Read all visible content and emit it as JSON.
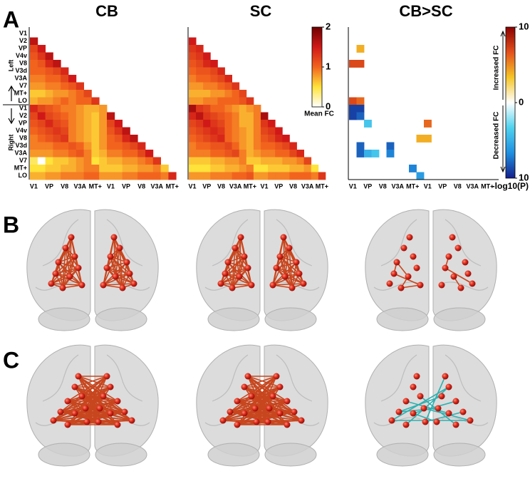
{
  "panel_labels": [
    "A",
    "B",
    "C"
  ],
  "chart_data": [
    {
      "type": "heatmap",
      "title": "CB",
      "row_groups": [
        "Left",
        "Right"
      ],
      "y_categories": [
        "V1",
        "V2",
        "VP",
        "V4v",
        "V8",
        "V3d",
        "V3A",
        "V7",
        "MT+",
        "LO",
        "V1",
        "V2",
        "VP",
        "V4v",
        "V8",
        "V3d",
        "V3A",
        "V7",
        "MT+",
        "LO"
      ],
      "x_categories": [
        "V1",
        null,
        "VP",
        null,
        "V8",
        null,
        "V3A",
        null,
        "MT+",
        null,
        "V1",
        null,
        "VP",
        null,
        "V8",
        null,
        "V3A",
        null,
        "MT+",
        null
      ],
      "values": [
        [],
        [
          1.6
        ],
        [
          1.2,
          1.5
        ],
        [
          1.1,
          1.3,
          1.6
        ],
        [
          1.0,
          1.1,
          1.4,
          1.6
        ],
        [
          1.0,
          1.0,
          1.1,
          1.2,
          1.4
        ],
        [
          0.9,
          0.9,
          1.0,
          1.0,
          1.2,
          1.5
        ],
        [
          0.8,
          0.8,
          0.9,
          0.9,
          1.0,
          1.1,
          1.3
        ],
        [
          0.6,
          0.6,
          0.7,
          0.8,
          0.8,
          0.9,
          1.0,
          1.2
        ],
        [
          0.7,
          0.8,
          0.8,
          0.9,
          1.0,
          0.9,
          1.0,
          1.0,
          1.3
        ],
        [
          1.4,
          1.2,
          1.1,
          1.0,
          0.9,
          0.9,
          0.8,
          0.7,
          0.7,
          0.8
        ],
        [
          1.2,
          1.5,
          1.2,
          1.1,
          1.0,
          0.9,
          0.8,
          0.7,
          0.6,
          0.8,
          1.6
        ],
        [
          1.1,
          1.2,
          1.4,
          1.2,
          1.1,
          0.9,
          0.8,
          0.7,
          0.6,
          0.8,
          1.2,
          1.5
        ],
        [
          1.0,
          1.1,
          1.2,
          1.3,
          1.2,
          0.9,
          0.8,
          0.7,
          0.6,
          0.8,
          1.1,
          1.3,
          1.6
        ],
        [
          0.9,
          1.0,
          1.1,
          1.2,
          1.3,
          0.9,
          0.8,
          0.7,
          0.6,
          0.8,
          1.0,
          1.1,
          1.4,
          1.6
        ],
        [
          0.9,
          0.9,
          0.9,
          1.0,
          1.0,
          1.1,
          1.0,
          0.8,
          0.6,
          0.8,
          1.0,
          1.0,
          1.1,
          1.2,
          1.4
        ],
        [
          0.8,
          0.8,
          0.8,
          0.9,
          0.9,
          1.0,
          1.1,
          0.9,
          0.6,
          0.7,
          0.9,
          0.9,
          1.0,
          1.0,
          1.2,
          1.5
        ],
        [
          0.4,
          0.0,
          0.5,
          0.6,
          0.6,
          0.7,
          0.8,
          0.9,
          0.5,
          0.6,
          0.7,
          0.7,
          0.8,
          0.8,
          0.9,
          1.0,
          1.3
        ],
        [
          0.5,
          0.5,
          0.6,
          0.6,
          0.7,
          0.7,
          0.8,
          0.9,
          0.9,
          0.6,
          0.6,
          0.6,
          0.7,
          0.7,
          0.8,
          0.8,
          0.9,
          0.6
        ],
        [
          0.7,
          0.7,
          0.8,
          0.8,
          0.9,
          0.9,
          0.9,
          1.0,
          1.0,
          0.8,
          0.8,
          0.8,
          0.9,
          0.9,
          1.0,
          1.0,
          1.0,
          0.9,
          1.4
        ]
      ]
    },
    {
      "type": "heatmap",
      "title": "SC",
      "x_categories": [
        "V1",
        null,
        "VP",
        null,
        "V8",
        null,
        "V3A",
        null,
        "MT+",
        null,
        "V1",
        null,
        "VP",
        null,
        "V8",
        null,
        "V3A",
        null,
        "MT+",
        null
      ],
      "values": [
        [],
        [
          1.5
        ],
        [
          1.3,
          1.4
        ],
        [
          1.2,
          1.3,
          1.5
        ],
        [
          1.1,
          1.2,
          1.4,
          1.5
        ],
        [
          1.0,
          1.1,
          1.1,
          1.2,
          1.4
        ],
        [
          0.9,
          1.0,
          1.0,
          1.1,
          1.2,
          1.4
        ],
        [
          0.8,
          0.8,
          0.9,
          0.9,
          1.0,
          1.1,
          1.3
        ],
        [
          0.7,
          0.7,
          0.7,
          0.8,
          0.8,
          0.9,
          1.0,
          1.2
        ],
        [
          0.8,
          0.8,
          0.9,
          0.9,
          1.0,
          1.0,
          1.0,
          1.1,
          1.3
        ],
        [
          1.7,
          1.3,
          1.2,
          1.0,
          1.0,
          0.9,
          0.8,
          0.7,
          0.8,
          0.9
        ],
        [
          1.4,
          1.6,
          1.3,
          1.2,
          1.1,
          1.0,
          0.9,
          0.7,
          0.7,
          0.9,
          1.7
        ],
        [
          1.2,
          1.3,
          1.5,
          1.3,
          1.2,
          1.0,
          0.9,
          0.7,
          0.7,
          0.9,
          1.3,
          1.5
        ],
        [
          1.1,
          1.2,
          1.3,
          1.4,
          1.3,
          1.0,
          0.9,
          0.8,
          0.7,
          0.9,
          1.2,
          1.3,
          1.5
        ],
        [
          1.0,
          1.1,
          1.2,
          1.3,
          1.4,
          1.0,
          0.9,
          0.8,
          0.7,
          0.9,
          1.1,
          1.2,
          1.4,
          1.5
        ],
        [
          0.9,
          1.0,
          1.0,
          1.1,
          1.1,
          1.2,
          1.0,
          0.8,
          0.7,
          0.9,
          1.0,
          1.0,
          1.1,
          1.2,
          1.4
        ],
        [
          0.9,
          0.9,
          0.9,
          1.0,
          1.0,
          1.1,
          1.2,
          0.9,
          0.7,
          0.8,
          0.9,
          0.9,
          1.0,
          1.0,
          1.2,
          1.4
        ],
        [
          0.6,
          0.6,
          0.6,
          0.7,
          0.7,
          0.8,
          0.8,
          0.9,
          0.6,
          0.6,
          0.7,
          0.7,
          0.7,
          0.8,
          0.8,
          0.9,
          1.2
        ],
        [
          0.5,
          0.5,
          0.5,
          0.6,
          0.6,
          0.7,
          0.7,
          0.8,
          0.9,
          0.5,
          0.5,
          0.6,
          0.6,
          0.6,
          0.7,
          0.7,
          0.8,
          0.5
        ],
        [
          0.8,
          0.8,
          0.8,
          0.9,
          0.9,
          0.9,
          1.0,
          1.0,
          1.1,
          0.8,
          0.8,
          0.9,
          0.9,
          0.9,
          1.0,
          1.0,
          1.0,
          0.9,
          1.3
        ]
      ],
      "colorbar": {
        "label": "Mean FC",
        "lim": [
          0,
          2
        ],
        "ticks": [
          0,
          1,
          2
        ],
        "colors": [
          "#ffffff",
          "#ffe23a",
          "#f2641e",
          "#d01818",
          "#6e0000"
        ]
      }
    },
    {
      "type": "sparse-heatmap",
      "title": "CB>SC",
      "x_categories": [
        "V1",
        null,
        "VP",
        null,
        "V8",
        null,
        "V3A",
        null,
        "MT+",
        null,
        "V1",
        null,
        "VP",
        null,
        "V8",
        null,
        "V3A",
        null,
        "MT+",
        null
      ],
      "cells": [
        {
          "row": 2,
          "col": 1,
          "value": 4
        },
        {
          "row": 4,
          "col": 0,
          "value": 7
        },
        {
          "row": 4,
          "col": 1,
          "value": 7
        },
        {
          "row": 9,
          "col": 0,
          "value": 7
        },
        {
          "row": 9,
          "col": 1,
          "value": 6
        },
        {
          "row": 10,
          "col": 0,
          "value": -9
        },
        {
          "row": 10,
          "col": 1,
          "value": -9
        },
        {
          "row": 11,
          "col": 0,
          "value": -9
        },
        {
          "row": 11,
          "col": 1,
          "value": -8
        },
        {
          "row": 12,
          "col": 2,
          "value": -4
        },
        {
          "row": 12,
          "col": 10,
          "value": 6
        },
        {
          "row": 14,
          "col": 9,
          "value": 4
        },
        {
          "row": 14,
          "col": 10,
          "value": 4
        },
        {
          "row": 15,
          "col": 1,
          "value": -8
        },
        {
          "row": 15,
          "col": 5,
          "value": -8
        },
        {
          "row": 16,
          "col": 1,
          "value": -8
        },
        {
          "row": 16,
          "col": 2,
          "value": -5
        },
        {
          "row": 16,
          "col": 3,
          "value": -4
        },
        {
          "row": 16,
          "col": 5,
          "value": -7
        },
        {
          "row": 18,
          "col": 8,
          "value": -7
        },
        {
          "row": 19,
          "col": 9,
          "value": -6
        }
      ],
      "colorbar": {
        "label": "-log10(P)",
        "upper_label": "Increased FC",
        "lower_label": "Decreased FC",
        "lim": [
          -10,
          10
        ],
        "ticks": [
          {
            "value": -10,
            "label": "10"
          },
          0,
          10
        ],
        "colors": [
          "#151f8c",
          "#1f8fe0",
          "#4fd2ee",
          "#ffffff",
          "#f5c526",
          "#e4501c",
          "#8a0000"
        ]
      }
    }
  ]
}
